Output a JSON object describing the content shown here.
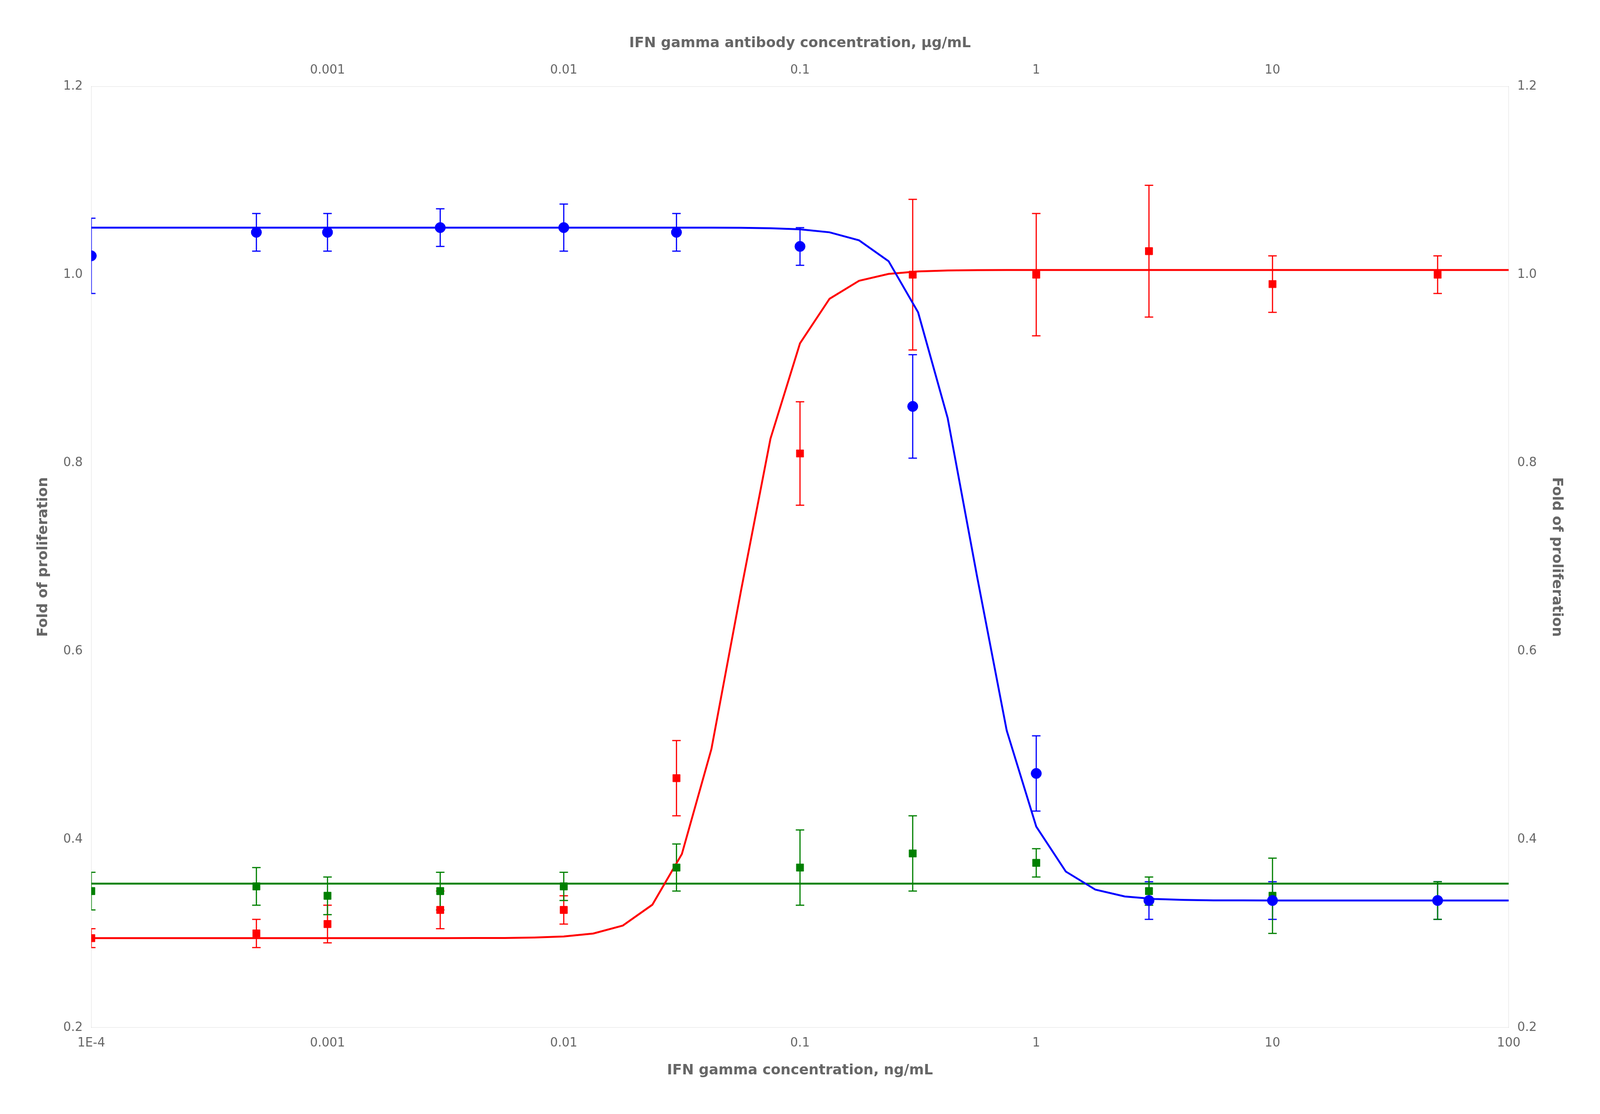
{
  "chart_data": {
    "type": "scatter",
    "xlabel": "IFN gamma concentration, ng/mL",
    "x2label": "IFN gamma antibody concentration, μg/mL",
    "ylabel": "Fold of proliferation",
    "y2label": "Fold of proliferation",
    "log": "x",
    "grid": false,
    "xlim": [
      0.0001,
      100
    ],
    "xticks": [
      {
        "value": 0.0001,
        "label": "1E-4"
      },
      0.001,
      0.01,
      0.1,
      1,
      10,
      100
    ],
    "x2lim": [
      0.0001,
      100
    ],
    "x2ticks": [
      0.001,
      0.01,
      0.1,
      1,
      10
    ],
    "ylim": [
      0.2,
      1.2
    ],
    "yticks": [
      0.2,
      0.4,
      0.6,
      0.8,
      {
        "value": 1.0,
        "label": "1.0"
      },
      1.2
    ],
    "y2lim": [
      0.2,
      1.2
    ],
    "y2ticks": [
      0.2,
      0.4,
      0.6,
      0.8,
      {
        "value": 1.0,
        "label": "1.0"
      },
      1.2
    ],
    "series": [
      {
        "type": "line",
        "color": "#0000ff",
        "x": [
          0.0001,
          0.01,
          0.0133352,
          0.0177828,
          0.0237137,
          0.0316228,
          0.0421697,
          0.0562341,
          0.0749894,
          0.1,
          0.133352,
          0.177828,
          0.237137,
          0.316228,
          0.421697,
          0.562341,
          0.749894,
          1,
          1.33352,
          1.77828,
          2.37137,
          3.16228,
          4.21697,
          5.62341,
          7.49894,
          10,
          100
        ],
        "values": [
          1.05,
          1.05,
          1.05,
          1.05,
          1.05,
          1.05,
          1.0499,
          1.0498,
          1.0493,
          1.0482,
          1.045,
          1.0365,
          1.0143,
          0.9599,
          0.8477,
          0.6786,
          0.5156,
          0.4135,
          0.3658,
          0.3466,
          0.3393,
          0.3366,
          0.3356,
          0.3352,
          0.3351,
          0.335,
          0.335
        ]
      },
      {
        "type": "line",
        "color": "#ff0000",
        "x": [
          0.0001,
          0.001,
          0.00133352,
          0.00177828,
          0.00237137,
          0.00316228,
          0.00421697,
          0.00562341,
          0.00749894,
          0.01,
          0.0133352,
          0.0177828,
          0.0237137,
          0.0316228,
          0.0421697,
          0.0562341,
          0.0749894,
          0.1,
          0.133352,
          0.177828,
          0.237137,
          0.316228,
          0.421697,
          0.562341,
          0.749894,
          1,
          100
        ],
        "values": [
          0.295,
          0.295,
          0.295,
          0.295,
          0.295,
          0.295,
          0.2951,
          0.2952,
          0.2957,
          0.2968,
          0.2999,
          0.3084,
          0.3305,
          0.3844,
          0.4959,
          0.6638,
          0.8257,
          0.927,
          0.9744,
          0.9935,
          1.0008,
          1.0034,
          1.0044,
          1.0048,
          1.0049,
          1.005,
          1.005
        ]
      },
      {
        "type": "line",
        "color": "#008000",
        "x": [
          0.0001,
          100
        ],
        "values": [
          0.353,
          0.353
        ]
      },
      {
        "type": "scatter",
        "color": "#0000ff",
        "marker": "circle",
        "x": [
          0.0001,
          0.0005,
          0.001,
          0.003,
          0.01,
          0.03,
          0.1,
          0.3,
          1.0,
          3.0,
          10.0,
          50.0
        ],
        "values": [
          1.02,
          1.045,
          1.045,
          1.05,
          1.05,
          1.045,
          1.03,
          0.86,
          0.47,
          0.335,
          0.335,
          0.335
        ],
        "yerr": [
          0.04,
          0.02,
          0.02,
          0.02,
          0.025,
          0.02,
          0.02,
          0.055,
          0.04,
          0.02,
          0.02,
          0.02
        ]
      },
      {
        "type": "scatter",
        "color": "#ff0000",
        "marker": "square",
        "x": [
          0.0001,
          0.0005,
          0.001,
          0.003,
          0.01,
          0.03,
          0.1,
          0.3,
          1.0,
          3.0,
          10.0,
          50.0
        ],
        "values": [
          0.295,
          0.3,
          0.31,
          0.325,
          0.325,
          0.465,
          0.81,
          1.0,
          1.0,
          1.025,
          0.99,
          1.0
        ],
        "yerr": [
          0.01,
          0.015,
          0.02,
          0.02,
          0.015,
          0.04,
          0.055,
          0.08,
          0.065,
          0.07,
          0.03,
          0.02
        ]
      },
      {
        "type": "scatter",
        "color": "#008000",
        "marker": "square",
        "x": [
          0.0001,
          0.0005,
          0.001,
          0.003,
          0.01,
          0.03,
          0.1,
          0.3,
          1.0,
          3.0,
          10.0,
          50.0
        ],
        "values": [
          0.345,
          0.35,
          0.34,
          0.345,
          0.35,
          0.37,
          0.37,
          0.385,
          0.375,
          0.345,
          0.34,
          0.335
        ],
        "yerr": [
          0.02,
          0.02,
          0.02,
          0.02,
          0.015,
          0.025,
          0.04,
          0.04,
          0.015,
          0.015,
          0.04,
          0.02
        ]
      }
    ]
  }
}
